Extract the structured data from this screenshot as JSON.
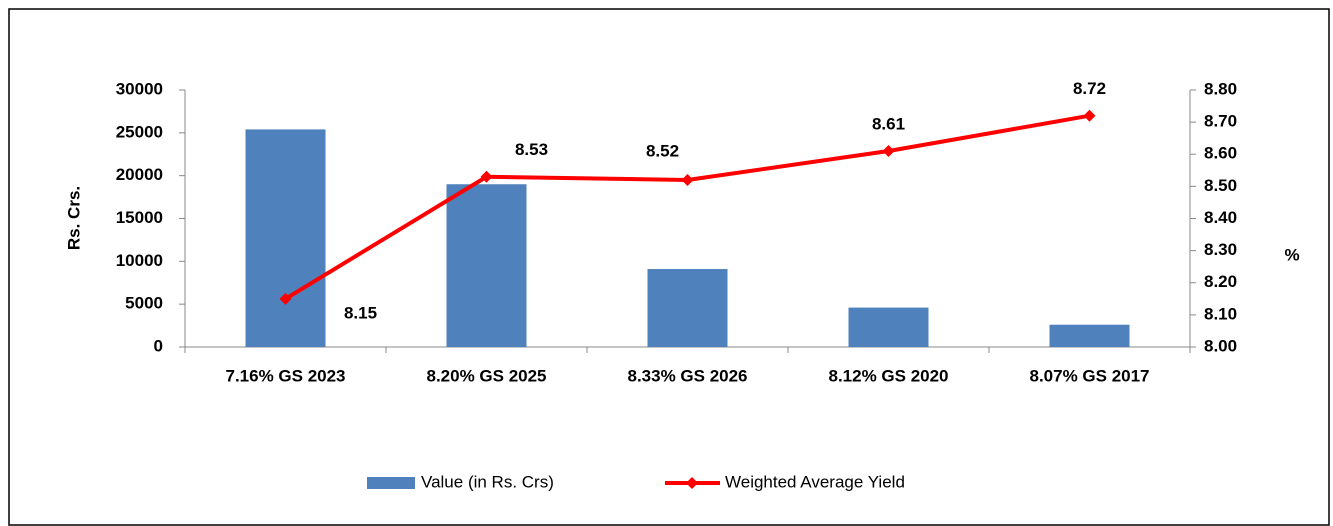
{
  "chart_data": {
    "type": "bar_line",
    "y_label": "Rs. Crs.",
    "y2_label": "%",
    "categories": [
      "7.16% GS 2023",
      "8.20% GS 2025",
      "8.33% GS 2026",
      "8.12% GS 2020",
      "8.07% GS 2017"
    ],
    "series": [
      {
        "name": "Value (in Rs. Crs)",
        "color": "#4f81bd",
        "type": "bar",
        "values": [
          25400,
          19000,
          9100,
          4600,
          2600
        ]
      },
      {
        "name": "Weighted Average Yield",
        "color": "#ff0000",
        "type": "line",
        "axis": "y2",
        "values": [
          8.15,
          8.53,
          8.52,
          8.61,
          8.72
        ],
        "value_labels": [
          "8.15",
          "8.53",
          "8.52",
          "8.61",
          "8.72"
        ]
      }
    ],
    "ylim": [
      0,
      30000
    ],
    "yticks": [
      0,
      5000,
      10000,
      15000,
      20000,
      25000,
      30000
    ],
    "y2lim": [
      8.0,
      8.8
    ],
    "y2ticks": [
      {
        "value": 8.0,
        "label": "8.00"
      },
      {
        "value": 8.1,
        "label": "8.10"
      },
      {
        "value": 8.2,
        "label": "8.20"
      },
      {
        "value": 8.3,
        "label": "8.30"
      },
      {
        "value": 8.4,
        "label": "8.40"
      },
      {
        "value": 8.5,
        "label": "8.50"
      },
      {
        "value": 8.6,
        "label": "8.60"
      },
      {
        "value": 8.7,
        "label": "8.70"
      },
      {
        "value": 8.8,
        "label": "8.80"
      }
    ],
    "grid": false,
    "legend": "bottom"
  }
}
